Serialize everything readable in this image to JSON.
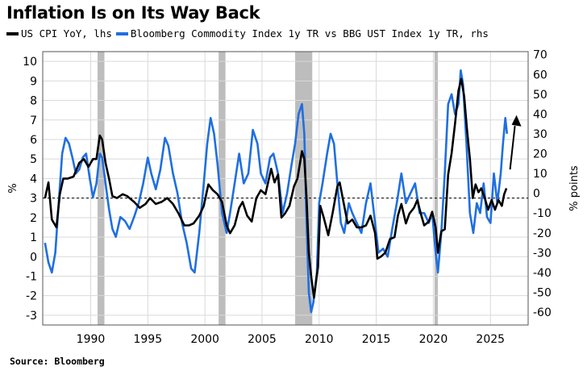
{
  "title": "Inflation Is on Its Way Back",
  "source": "Source: Bloomberg",
  "colors": {
    "cpi": "#000000",
    "commodity": "#1f6fe0",
    "recession": "#bdbdbd",
    "grid": "#d9d9d9"
  },
  "chart_data": {
    "type": "line",
    "left_axis": {
      "label": "%",
      "ylim": [
        -3.5,
        10.5
      ],
      "ticks": [
        -3,
        -2,
        -1,
        0,
        1,
        2,
        3,
        4,
        5,
        6,
        7,
        8,
        9,
        10
      ]
    },
    "right_axis": {
      "label": "% points",
      "ylim": [
        -66.5,
        71.5
      ],
      "ticks": [
        -60,
        -50,
        -40,
        -30,
        -20,
        -10,
        0,
        10,
        20,
        30,
        40,
        50,
        60,
        70
      ]
    },
    "xlim": [
      1985.8,
      2028.3
    ],
    "x_ticks": [
      1990,
      1995,
      2000,
      2005,
      2010,
      2015,
      2020,
      2025
    ],
    "grid": true,
    "reference_line": {
      "axis": "left",
      "value": 3,
      "style": "dashed"
    },
    "recessions": [
      [
        1990.6,
        1991.2
      ],
      [
        2001.2,
        2001.8
      ],
      [
        2007.9,
        2009.4
      ],
      [
        2020.1,
        2020.4
      ]
    ],
    "annotation": "upward arrow near 2027",
    "series": [
      {
        "name": "US CPI YoY, lhs",
        "axis": "left",
        "points": [
          [
            1986.0,
            3.0
          ],
          [
            1986.3,
            3.8
          ],
          [
            1986.6,
            1.9
          ],
          [
            1987.0,
            1.5
          ],
          [
            1987.3,
            3.2
          ],
          [
            1987.6,
            4.0
          ],
          [
            1988.0,
            4.0
          ],
          [
            1988.5,
            4.1
          ],
          [
            1989.0,
            4.8
          ],
          [
            1989.4,
            5.0
          ],
          [
            1989.8,
            4.6
          ],
          [
            1990.2,
            5.0
          ],
          [
            1990.5,
            5.0
          ],
          [
            1990.8,
            6.2
          ],
          [
            1991.0,
            6.0
          ],
          [
            1991.3,
            4.8
          ],
          [
            1991.6,
            4.0
          ],
          [
            1991.9,
            3.1
          ],
          [
            1992.3,
            3.0
          ],
          [
            1992.8,
            3.2
          ],
          [
            1993.2,
            3.1
          ],
          [
            1993.8,
            2.8
          ],
          [
            1994.3,
            2.5
          ],
          [
            1994.8,
            2.7
          ],
          [
            1995.2,
            3.0
          ],
          [
            1995.7,
            2.7
          ],
          [
            1996.2,
            2.8
          ],
          [
            1996.7,
            3.0
          ],
          [
            1997.2,
            2.7
          ],
          [
            1997.7,
            2.2
          ],
          [
            1998.2,
            1.6
          ],
          [
            1998.6,
            1.6
          ],
          [
            1999.0,
            1.7
          ],
          [
            1999.5,
            2.1
          ],
          [
            1999.9,
            2.6
          ],
          [
            2000.3,
            3.7
          ],
          [
            2000.7,
            3.4
          ],
          [
            2001.1,
            3.2
          ],
          [
            2001.5,
            2.8
          ],
          [
            2001.9,
            1.6
          ],
          [
            2002.2,
            1.2
          ],
          [
            2002.6,
            1.6
          ],
          [
            2003.0,
            2.5
          ],
          [
            2003.3,
            2.8
          ],
          [
            2003.7,
            2.1
          ],
          [
            2004.1,
            1.8
          ],
          [
            2004.5,
            3.0
          ],
          [
            2004.9,
            3.4
          ],
          [
            2005.3,
            3.2
          ],
          [
            2005.8,
            4.5
          ],
          [
            2006.1,
            3.8
          ],
          [
            2006.4,
            4.2
          ],
          [
            2006.7,
            2.0
          ],
          [
            2007.0,
            2.2
          ],
          [
            2007.4,
            2.6
          ],
          [
            2007.8,
            3.6
          ],
          [
            2008.1,
            4.0
          ],
          [
            2008.5,
            5.4
          ],
          [
            2008.7,
            5.0
          ],
          [
            2008.9,
            3.0
          ],
          [
            2009.1,
            0.2
          ],
          [
            2009.3,
            -1.0
          ],
          [
            2009.55,
            -2.1
          ],
          [
            2009.9,
            -0.5
          ],
          [
            2010.1,
            2.6
          ],
          [
            2010.4,
            2.0
          ],
          [
            2010.8,
            1.1
          ],
          [
            2011.2,
            2.3
          ],
          [
            2011.6,
            3.6
          ],
          [
            2011.8,
            3.8
          ],
          [
            2012.1,
            2.9
          ],
          [
            2012.5,
            1.7
          ],
          [
            2012.9,
            1.9
          ],
          [
            2013.3,
            1.5
          ],
          [
            2013.7,
            1.5
          ],
          [
            2014.1,
            1.6
          ],
          [
            2014.5,
            2.1
          ],
          [
            2014.9,
            1.2
          ],
          [
            2015.1,
            -0.1
          ],
          [
            2015.4,
            0.0
          ],
          [
            2015.8,
            0.2
          ],
          [
            2016.2,
            0.9
          ],
          [
            2016.6,
            1.0
          ],
          [
            2016.9,
            2.1
          ],
          [
            2017.2,
            2.7
          ],
          [
            2017.6,
            1.7
          ],
          [
            2017.9,
            2.2
          ],
          [
            2018.3,
            2.5
          ],
          [
            2018.6,
            2.9
          ],
          [
            2018.9,
            2.2
          ],
          [
            2019.2,
            1.6
          ],
          [
            2019.6,
            1.8
          ],
          [
            2019.9,
            2.3
          ],
          [
            2020.2,
            1.5
          ],
          [
            2020.4,
            0.2
          ],
          [
            2020.7,
            1.3
          ],
          [
            2021.0,
            1.4
          ],
          [
            2021.3,
            4.2
          ],
          [
            2021.6,
            5.3
          ],
          [
            2021.9,
            6.8
          ],
          [
            2022.2,
            8.5
          ],
          [
            2022.45,
            9.1
          ],
          [
            2022.7,
            8.2
          ],
          [
            2022.95,
            6.5
          ],
          [
            2023.2,
            5.0
          ],
          [
            2023.45,
            3.0
          ],
          [
            2023.7,
            3.7
          ],
          [
            2023.95,
            3.3
          ],
          [
            2024.2,
            3.5
          ],
          [
            2024.5,
            3.0
          ],
          [
            2024.8,
            2.4
          ],
          [
            2025.1,
            2.9
          ],
          [
            2025.4,
            2.4
          ],
          [
            2025.7,
            2.9
          ],
          [
            2026.0,
            2.6
          ],
          [
            2026.2,
            3.2
          ],
          [
            2026.4,
            3.5
          ]
        ]
      },
      {
        "name": "Bloomberg Commodity Index 1y TR vs BBG UST Index 1y TR, rhs",
        "axis": "right",
        "points": [
          [
            1986.0,
            -25
          ],
          [
            1986.3,
            -35
          ],
          [
            1986.6,
            -40
          ],
          [
            1986.9,
            -30
          ],
          [
            1987.2,
            -5
          ],
          [
            1987.5,
            20
          ],
          [
            1987.8,
            28
          ],
          [
            1988.1,
            25
          ],
          [
            1988.4,
            18
          ],
          [
            1988.7,
            10
          ],
          [
            1989.0,
            12
          ],
          [
            1989.3,
            18
          ],
          [
            1989.6,
            20
          ],
          [
            1989.9,
            8
          ],
          [
            1990.2,
            -2
          ],
          [
            1990.5,
            5
          ],
          [
            1990.8,
            20
          ],
          [
            1991.0,
            18
          ],
          [
            1991.3,
            5
          ],
          [
            1991.6,
            -8
          ],
          [
            1991.9,
            -18
          ],
          [
            1992.2,
            -22
          ],
          [
            1992.6,
            -12
          ],
          [
            1993.0,
            -14
          ],
          [
            1993.4,
            -18
          ],
          [
            1993.8,
            -12
          ],
          [
            1994.2,
            -5
          ],
          [
            1994.6,
            5
          ],
          [
            1995.0,
            18
          ],
          [
            1995.3,
            10
          ],
          [
            1995.7,
            2
          ],
          [
            1996.1,
            12
          ],
          [
            1996.5,
            28
          ],
          [
            1996.8,
            24
          ],
          [
            1997.2,
            10
          ],
          [
            1997.6,
            0
          ],
          [
            1998.0,
            -15
          ],
          [
            1998.4,
            -25
          ],
          [
            1998.8,
            -38
          ],
          [
            1999.1,
            -40
          ],
          [
            1999.5,
            -20
          ],
          [
            1999.9,
            5
          ],
          [
            2000.2,
            25
          ],
          [
            2000.5,
            38
          ],
          [
            2000.8,
            30
          ],
          [
            2001.1,
            15
          ],
          [
            2001.5,
            -10
          ],
          [
            2001.9,
            -20
          ],
          [
            2002.2,
            -10
          ],
          [
            2002.6,
            5
          ],
          [
            2003.0,
            20
          ],
          [
            2003.4,
            5
          ],
          [
            2003.8,
            10
          ],
          [
            2004.2,
            32
          ],
          [
            2004.6,
            25
          ],
          [
            2004.9,
            10
          ],
          [
            2005.3,
            5
          ],
          [
            2005.7,
            18
          ],
          [
            2006.0,
            20
          ],
          [
            2006.4,
            10
          ],
          [
            2006.8,
            -10
          ],
          [
            2007.2,
            0
          ],
          [
            2007.6,
            15
          ],
          [
            2007.9,
            25
          ],
          [
            2008.2,
            40
          ],
          [
            2008.5,
            45
          ],
          [
            2008.7,
            30
          ],
          [
            2008.9,
            -15
          ],
          [
            2009.1,
            -50
          ],
          [
            2009.3,
            -60
          ],
          [
            2009.5,
            -55
          ],
          [
            2009.8,
            -40
          ],
          [
            2010.0,
            -5
          ],
          [
            2010.3,
            5
          ],
          [
            2010.7,
            20
          ],
          [
            2011.0,
            30
          ],
          [
            2011.3,
            25
          ],
          [
            2011.6,
            5
          ],
          [
            2011.9,
            -15
          ],
          [
            2012.2,
            -20
          ],
          [
            2012.6,
            -5
          ],
          [
            2012.9,
            -10
          ],
          [
            2013.3,
            -15
          ],
          [
            2013.7,
            -20
          ],
          [
            2014.1,
            -5
          ],
          [
            2014.5,
            5
          ],
          [
            2014.9,
            -15
          ],
          [
            2015.2,
            -30
          ],
          [
            2015.6,
            -28
          ],
          [
            2016.0,
            -32
          ],
          [
            2016.4,
            -18
          ],
          [
            2016.8,
            -5
          ],
          [
            2017.2,
            10
          ],
          [
            2017.6,
            -5
          ],
          [
            2018.0,
            0
          ],
          [
            2018.4,
            5
          ],
          [
            2018.8,
            -10
          ],
          [
            2019.2,
            -10
          ],
          [
            2019.6,
            -15
          ],
          [
            2019.9,
            -10
          ],
          [
            2020.2,
            -30
          ],
          [
            2020.4,
            -40
          ],
          [
            2020.7,
            -20
          ],
          [
            2021.0,
            10
          ],
          [
            2021.3,
            45
          ],
          [
            2021.6,
            50
          ],
          [
            2021.9,
            40
          ],
          [
            2022.2,
            45
          ],
          [
            2022.4,
            62
          ],
          [
            2022.6,
            55
          ],
          [
            2022.9,
            25
          ],
          [
            2023.2,
            -10
          ],
          [
            2023.5,
            -20
          ],
          [
            2023.8,
            -5
          ],
          [
            2024.1,
            -10
          ],
          [
            2024.4,
            5
          ],
          [
            2024.7,
            -12
          ],
          [
            2025.0,
            -15
          ],
          [
            2025.3,
            10
          ],
          [
            2025.6,
            -5
          ],
          [
            2025.9,
            10
          ],
          [
            2026.1,
            25
          ],
          [
            2026.3,
            38
          ],
          [
            2026.45,
            30
          ]
        ]
      }
    ]
  }
}
